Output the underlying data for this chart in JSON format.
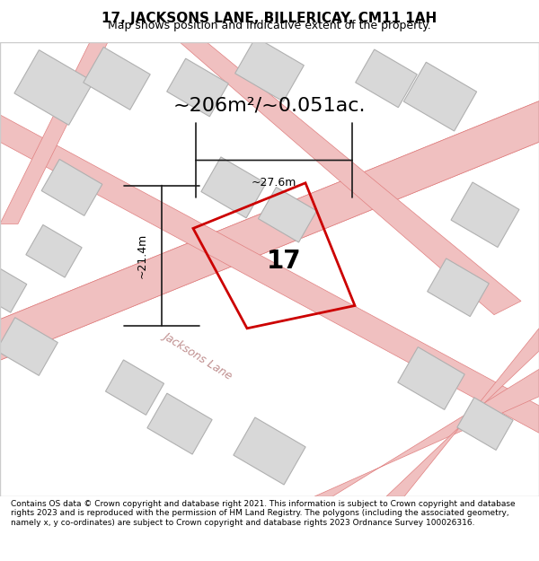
{
  "title": "17, JACKSONS LANE, BILLERICAY, CM11 1AH",
  "subtitle": "Map shows position and indicative extent of the property.",
  "area_text": "~206m²/~0.051ac.",
  "width_label": "~27.6m",
  "height_label": "~21.4m",
  "property_number": "17",
  "footer": "Contains OS data © Crown copyright and database right 2021. This information is subject to Crown copyright and database rights 2023 and is reproduced with the permission of HM Land Registry. The polygons (including the associated geometry, namely x, y co-ordinates) are subject to Crown copyright and database rights 2023 Ordnance Survey 100026316.",
  "bg_color": "#f5f5f5",
  "map_bg": "#ffffff",
  "road_color_light": "#f0c0c0",
  "road_color_dark": "#e08080",
  "building_fill": "#d8d8d8",
  "building_edge": "#b0b0b0",
  "property_color": "#cc0000",
  "dim_color": "#1a1a1a",
  "street_label": "Jacksons Lane",
  "title_fontsize": 11,
  "subtitle_fontsize": 9,
  "area_fontsize": 16,
  "footer_fontsize": 6.5
}
